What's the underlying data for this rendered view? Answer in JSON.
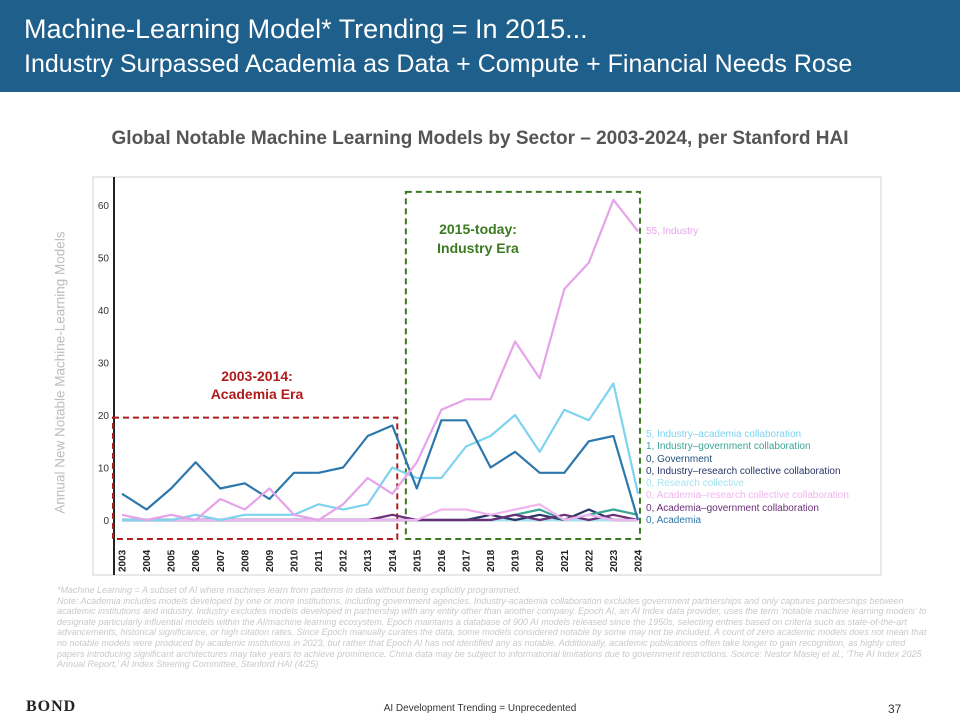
{
  "header": {
    "title_line1": "Machine-Learning Model* Trending = In 2015...",
    "title_line2": "Industry Surpassed Academia as Data + Compute + Financial Needs Rose"
  },
  "chart_data": {
    "type": "line",
    "title": "Global Notable Machine Learning Models by Sector – 2003-2024, per Stanford HAI",
    "ylabel": "Annual New Notable Machine-Learning Models",
    "xlabel": "",
    "ylim": [
      -4,
      65
    ],
    "yticks": [
      0,
      10,
      20,
      30,
      40,
      50,
      60
    ],
    "x": [
      "2003",
      "2004",
      "2005",
      "2006",
      "2007",
      "2008",
      "2009",
      "2010",
      "2011",
      "2012",
      "2013",
      "2014",
      "2015",
      "2016",
      "2017",
      "2018",
      "2019",
      "2020",
      "2021",
      "2022",
      "2023",
      "2024"
    ],
    "series": [
      {
        "name": "Industry",
        "color": "#e6a3ea",
        "label": "55, Industry",
        "values": [
          1,
          0,
          1,
          0,
          4,
          2,
          6,
          1,
          0,
          3,
          8,
          5,
          11,
          21,
          23,
          23,
          34,
          27,
          44,
          49,
          61,
          55
        ]
      },
      {
        "name": "Industry–academia collaboration",
        "color": "#7ed3ee",
        "label": "5, Industry–academia collaboration",
        "values": [
          0,
          0,
          0,
          1,
          0,
          1,
          1,
          1,
          3,
          2,
          3,
          10,
          8,
          8,
          14,
          16,
          20,
          13,
          21,
          19,
          26,
          5
        ]
      },
      {
        "name": "Industry–government collaboration",
        "color": "#3aa597",
        "label": "1, Industry–government collaboration",
        "values": [
          0,
          0,
          0,
          0,
          0,
          0,
          0,
          0,
          0,
          0,
          0,
          0,
          0,
          0,
          0,
          0,
          1,
          2,
          0,
          1,
          2,
          1
        ]
      },
      {
        "name": "Government",
        "color": "#24517a",
        "label": "0, Government",
        "values": [
          0,
          0,
          0,
          0,
          0,
          0,
          0,
          0,
          0,
          0,
          0,
          0,
          0,
          0,
          0,
          0,
          0,
          0,
          0,
          0,
          0,
          0
        ]
      },
      {
        "name": "Industry–research collective collaboration",
        "color": "#2a3566",
        "label": "0, Industry–research collective collaboration",
        "values": [
          0,
          0,
          0,
          0,
          0,
          0,
          0,
          0,
          0,
          0,
          0,
          0,
          0,
          0,
          0,
          1,
          0,
          1,
          0,
          2,
          0,
          0
        ]
      },
      {
        "name": "Research collective",
        "color": "#a3e4f0",
        "label": "0, Research collective",
        "values": [
          0,
          0,
          0,
          0,
          0,
          0,
          0,
          0,
          0,
          0,
          0,
          0,
          0,
          0,
          0,
          0,
          0,
          0,
          0,
          0,
          0,
          0
        ]
      },
      {
        "name": "Academia–research collective collaboration",
        "color": "#f0b5ef",
        "label": "0, Academia–research collective collaboration",
        "values": [
          0,
          0,
          0,
          0,
          0,
          0,
          0,
          0,
          0,
          0,
          0,
          0,
          0,
          2,
          2,
          1,
          2,
          3,
          0,
          1,
          0,
          0
        ]
      },
      {
        "name": "Academia–government collaboration",
        "color": "#6a2f78",
        "label": "0, Academia–government collaboration",
        "values": [
          0,
          0,
          0,
          0,
          0,
          0,
          0,
          0,
          0,
          0,
          0,
          1,
          0,
          0,
          0,
          0,
          1,
          0,
          1,
          0,
          1,
          0
        ]
      },
      {
        "name": "Academia",
        "color": "#2d77ad",
        "label": "0, Academia",
        "values": [
          5,
          2,
          6,
          11,
          6,
          7,
          4,
          9,
          9,
          10,
          16,
          18,
          6,
          19,
          19,
          10,
          13,
          9,
          9,
          15,
          16,
          0
        ]
      }
    ],
    "annotations": [
      {
        "text_line1": "2003-2014:",
        "text_line2": "Academia Era",
        "color": "#b01c1c",
        "start": "2003",
        "end": "2014"
      },
      {
        "text_line1": "2015-today:",
        "text_line2": "Industry Era",
        "color": "#3c7a22",
        "start": "2015",
        "end": "2024"
      }
    ]
  },
  "footnote": {
    "line1": "*Machine Learning = A subset of AI where machines learn from patterns in data without being explicitly programmed.",
    "line2": "Note: Academia includes models developed by one or more institutions, including government agencies. Industry-academia collaboration excludes government partnerships and only captures partnerships between academic institutions and industry. Industry excludes models developed in partnership with any entity other than another company. Epoch AI, an AI Index data provider, uses the term ‘notable machine learning models’ to designate particularly influential models within the AI/machine learning ecosystem. Epoch maintains a database of 900 AI models released since the 1950s, selecting entries based on criteria such as state-of-the-art advancements, historical significance, or high citation rates. Since Epoch manually curates the data, some models considered notable by some may not be included. A count of zero academic models does not mean that no notable models were produced by academic institutions in 2023, but rather that Epoch AI has not identified any as notable. Additionally, academic publications often take longer to gain recognition, as highly cited papers introducing significant architectures may take years to achieve prominence. China data may be subject to informational limitations due to government restrictions. Source: Nestor Maslej et al., ‘The AI Index 2025 Annual Report,’ AI Index Steering Committee, Stanford HAI (4/25)"
  },
  "footer": {
    "logo": "BOND",
    "center": "AI Development Trending = Unprecedented",
    "page": "37"
  }
}
